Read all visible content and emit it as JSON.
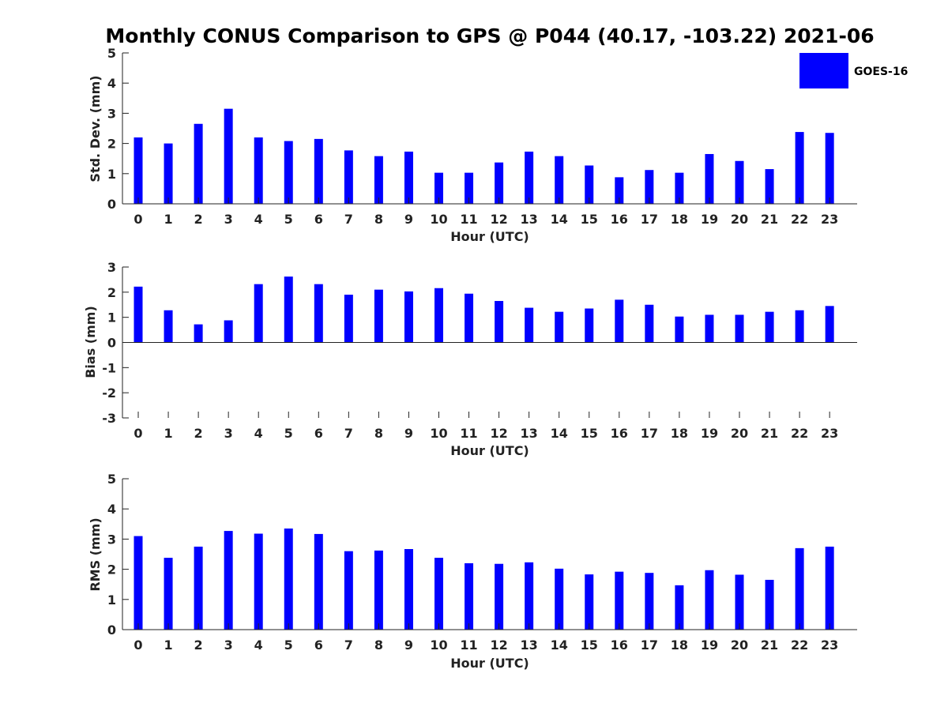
{
  "figure": {
    "title": "Monthly CONUS Comparison to GPS @ P044 (40.17, -103.22) 2021-06",
    "legend": {
      "label": "GOES-16",
      "color": "#0000ff",
      "placement": "top-right"
    }
  },
  "chart_data": [
    {
      "type": "bar",
      "ylabel": "Std. Dev. (mm)",
      "xlabel": "Hour (UTC)",
      "ylim": [
        0,
        5
      ],
      "yticks": [
        0,
        1,
        2,
        3,
        4,
        5
      ],
      "categories": [
        "0",
        "1",
        "2",
        "3",
        "4",
        "5",
        "6",
        "7",
        "8",
        "9",
        "10",
        "11",
        "12",
        "13",
        "14",
        "15",
        "16",
        "17",
        "18",
        "19",
        "20",
        "21",
        "22",
        "23"
      ],
      "series": [
        {
          "name": "GOES-16",
          "color": "#0000ff",
          "values": [
            2.2,
            2.0,
            2.65,
            3.15,
            2.2,
            2.08,
            2.15,
            1.77,
            1.58,
            1.73,
            1.03,
            1.03,
            1.37,
            1.73,
            1.58,
            1.27,
            0.88,
            1.12,
            1.03,
            1.65,
            1.42,
            1.15,
            2.38,
            2.35
          ]
        }
      ]
    },
    {
      "type": "bar",
      "ylabel": "Bias (mm)",
      "xlabel": "Hour (UTC)",
      "ylim": [
        -3,
        3
      ],
      "yticks": [
        -3,
        -2,
        -1,
        0,
        1,
        2,
        3
      ],
      "categories": [
        "0",
        "1",
        "2",
        "3",
        "4",
        "5",
        "6",
        "7",
        "8",
        "9",
        "10",
        "11",
        "12",
        "13",
        "14",
        "15",
        "16",
        "17",
        "18",
        "19",
        "20",
        "21",
        "22",
        "23"
      ],
      "series": [
        {
          "name": "GOES-16",
          "color": "#0000ff",
          "values": [
            2.22,
            1.28,
            0.72,
            0.88,
            2.32,
            2.62,
            2.32,
            1.9,
            2.1,
            2.03,
            2.16,
            1.94,
            1.65,
            1.38,
            1.22,
            1.35,
            1.7,
            1.5,
            1.03,
            1.1,
            1.1,
            1.22,
            1.28,
            1.45
          ]
        }
      ]
    },
    {
      "type": "bar",
      "ylabel": "RMS (mm)",
      "xlabel": "Hour (UTC)",
      "ylim": [
        0,
        5
      ],
      "yticks": [
        0,
        1,
        2,
        3,
        4,
        5
      ],
      "categories": [
        "0",
        "1",
        "2",
        "3",
        "4",
        "5",
        "6",
        "7",
        "8",
        "9",
        "10",
        "11",
        "12",
        "13",
        "14",
        "15",
        "16",
        "17",
        "18",
        "19",
        "20",
        "21",
        "22",
        "23"
      ],
      "series": [
        {
          "name": "GOES-16",
          "color": "#0000ff",
          "values": [
            3.1,
            2.38,
            2.75,
            3.27,
            3.18,
            3.35,
            3.17,
            2.6,
            2.62,
            2.67,
            2.38,
            2.2,
            2.18,
            2.23,
            2.02,
            1.83,
            1.92,
            1.88,
            1.47,
            1.97,
            1.82,
            1.65,
            2.7,
            2.75
          ]
        }
      ]
    }
  ]
}
